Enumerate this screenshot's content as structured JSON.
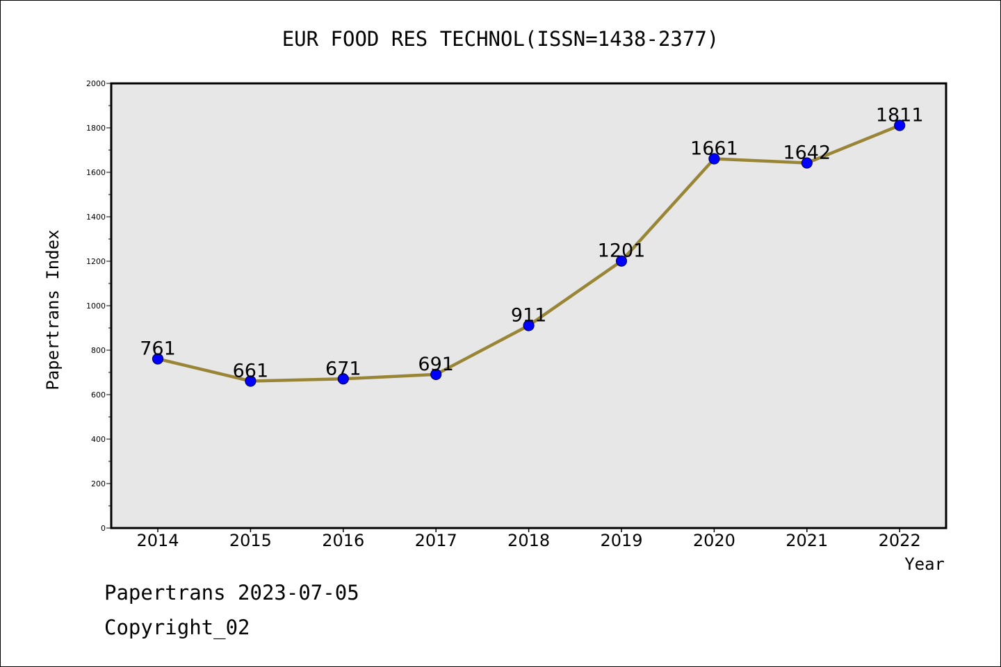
{
  "chart_data": {
    "type": "line",
    "title": "EUR FOOD RES TECHNOL(ISSN=1438-2377)",
    "xlabel": "Year",
    "ylabel": "Papertrans Index",
    "categories": [
      "2014",
      "2015",
      "2016",
      "2017",
      "2018",
      "2019",
      "2020",
      "2021",
      "2022"
    ],
    "values": [
      761,
      661,
      671,
      691,
      911,
      1201,
      1661,
      1642,
      1811
    ],
    "data_labels": [
      "761",
      "661",
      "671",
      "691",
      "911",
      "1201",
      "1661",
      "1642",
      "1811"
    ],
    "ylim": [
      0,
      2000
    ],
    "yticks": [
      0,
      200,
      400,
      600,
      800,
      1000,
      1200,
      1400,
      1600,
      1800,
      2000
    ],
    "ytick_labels": [
      "0",
      "200",
      "400",
      "600",
      "800",
      "1000",
      "1200",
      "1400",
      "1600",
      "1800",
      "2000"
    ],
    "grid": false,
    "colors": {
      "line": "#998536",
      "marker_fill": "#0000ff",
      "marker_edge": "#00005a",
      "plot_background": "#e7e7e7"
    }
  },
  "footer": {
    "source_line": "Papertrans 2023-07-05",
    "copyright_line": "Copyright_02"
  }
}
